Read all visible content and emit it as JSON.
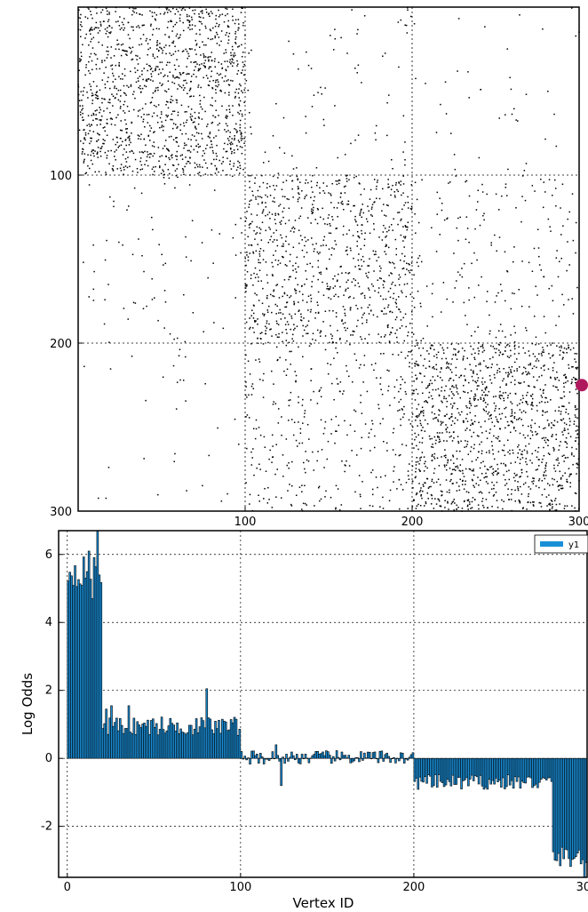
{
  "chart_data": [
    {
      "type": "scatter",
      "subtype": "adjacency-spy",
      "title": "",
      "xlabel": "",
      "ylabel": "",
      "xlim": [
        0,
        300
      ],
      "ylim": [
        300,
        0
      ],
      "x_ticks": [
        "100",
        "200",
        "300"
      ],
      "y_ticks": [
        "100",
        "200",
        "300"
      ],
      "grid": true,
      "blocks": [
        {
          "rows": [
            0,
            100
          ],
          "cols": [
            0,
            100
          ],
          "density": 0.13
        },
        {
          "rows": [
            0,
            100
          ],
          "cols": [
            100,
            200
          ],
          "density": 0.008
        },
        {
          "rows": [
            0,
            100
          ],
          "cols": [
            200,
            300
          ],
          "density": 0.004
        },
        {
          "rows": [
            100,
            200
          ],
          "cols": [
            0,
            100
          ],
          "density": 0.008
        },
        {
          "rows": [
            100,
            200
          ],
          "cols": [
            100,
            200
          ],
          "density": 0.09
        },
        {
          "rows": [
            100,
            200
          ],
          "cols": [
            200,
            300
          ],
          "density": 0.02
        },
        {
          "rows": [
            200,
            300
          ],
          "cols": [
            0,
            100
          ],
          "density": 0.003
        },
        {
          "rows": [
            200,
            300
          ],
          "cols": [
            100,
            200
          ],
          "density": 0.035
        },
        {
          "rows": [
            200,
            300
          ],
          "cols": [
            200,
            300
          ],
          "density": 0.13
        }
      ],
      "marker_color": "#000000",
      "highlight": {
        "x": 300,
        "y": 225,
        "color": "#b0185e"
      }
    },
    {
      "type": "bar",
      "title": "",
      "xlabel": "Vertex ID",
      "ylabel": "Log Odds",
      "xlim": [
        -5,
        300
      ],
      "ylim": [
        -3.5,
        6.7
      ],
      "x_ticks": [
        "0",
        "100",
        "200",
        "300"
      ],
      "y_ticks": [
        "-2",
        "0",
        "2",
        "4",
        "6"
      ],
      "grid": true,
      "legend": {
        "position": "top-right",
        "entries": [
          "y1"
        ]
      },
      "bar_color": "#1a8fd8",
      "bar_edge": "#000000",
      "segments": [
        {
          "range": [
            0,
            20
          ],
          "mean": 5.5,
          "jitter": 0.45,
          "spikes": {
            "17": 6.7,
            "12": 6.1,
            "14": 4.7
          }
        },
        {
          "range": [
            20,
            100
          ],
          "mean": 0.95,
          "jitter": 0.28,
          "spikes": {
            "80": 2.05,
            "35": 1.55,
            "22": 1.45,
            "25": 1.55
          }
        },
        {
          "range": [
            100,
            200
          ],
          "mean": 0.03,
          "jitter": 0.2,
          "spikes": {
            "120": 0.4,
            "123": -0.8
          }
        },
        {
          "range": [
            200,
            280
          ],
          "mean": -0.7,
          "jitter": 0.22
        },
        {
          "range": [
            280,
            300
          ],
          "mean": -2.9,
          "jitter": 0.3,
          "spikes": {
            "298": -3.5
          }
        }
      ]
    }
  ]
}
